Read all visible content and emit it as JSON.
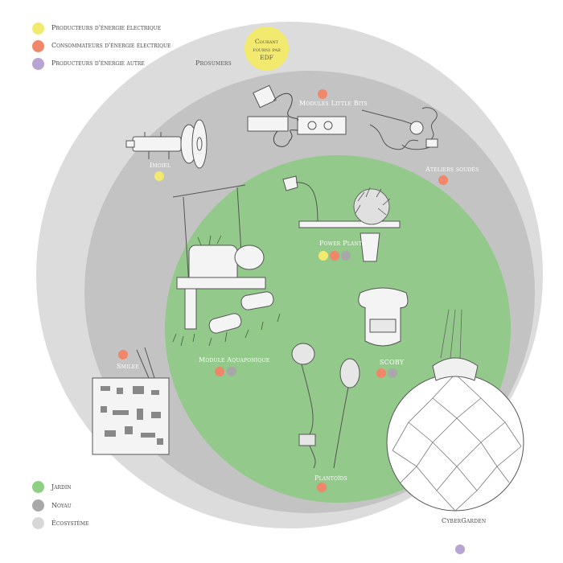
{
  "legend_energy": [
    {
      "label": "Producteurs d'énergie électrique",
      "color": "#f2ea6e"
    },
    {
      "label": "Consommateurs d'énergie électrique",
      "color": "#f0876a"
    },
    {
      "label": "Producteurs d'énergie autre",
      "color": "#b8a4d2"
    }
  ],
  "legend_zones": [
    {
      "label": "Jardin",
      "color": "#8fcf83"
    },
    {
      "label": "Noyau",
      "color": "#a8a8a8"
    },
    {
      "label": "Écosystème",
      "color": "#d7d7d7"
    }
  ],
  "edf_label": "Courant fourni par EDF",
  "zone_labels": {
    "prosumers": "Prosumers"
  },
  "items": [
    {
      "label": "Modules Little Bits",
      "icon": "little-bits-sketch"
    },
    {
      "label": "Imoiel",
      "icon": "motor-sketch"
    },
    {
      "label": "Ateliers soudés",
      "icon": "soldering-sketch"
    },
    {
      "label": "Power Plante",
      "icon": "power-plant-sketch"
    },
    {
      "label": "Module Aquaponique",
      "icon": "aquaponic-sketch"
    },
    {
      "label": "SCOBY",
      "icon": "jar-sketch"
    },
    {
      "label": "Smilee",
      "icon": "circuit-board-sketch"
    },
    {
      "label": "Plantoïds",
      "icon": "plantoid-sketch"
    },
    {
      "label": "CyberGarden",
      "icon": "geodesic-sphere-sketch"
    }
  ]
}
